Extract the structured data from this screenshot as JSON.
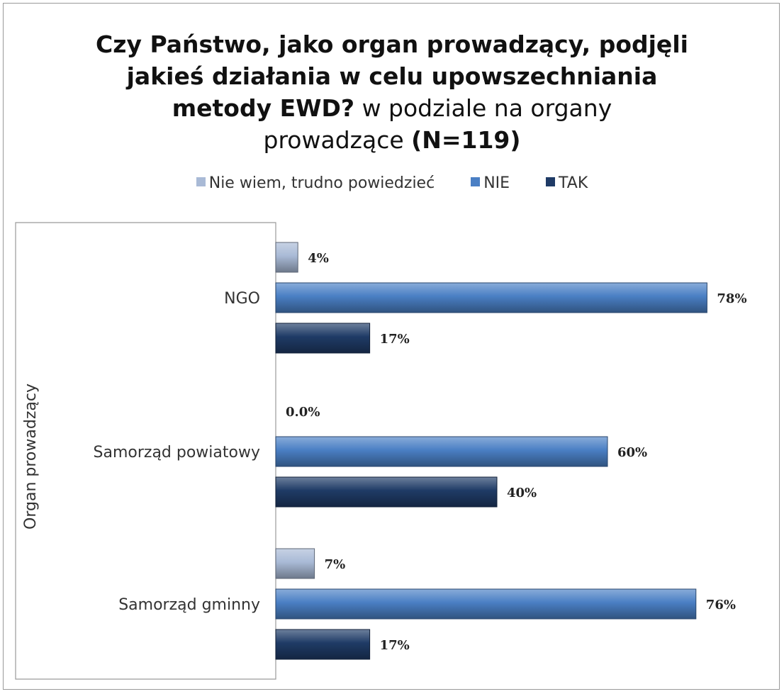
{
  "chart_data": {
    "type": "bar",
    "orientation": "horizontal",
    "title_parts": [
      {
        "text": "Czy Państwo, jako organ prowadzący, podjęli",
        "bold": true
      },
      {
        "text": "jakieś działania w celu upowszechniania",
        "bold": true
      },
      {
        "text": "metody EWD?",
        "bold": true
      },
      {
        "text": " w podziale na organy",
        "bold": false
      },
      {
        "text": "prowadzące ",
        "bold": false
      },
      {
        "text": "(N=119)",
        "bold": true
      }
    ],
    "ylabel": "Organ prowadzący",
    "xlabel": "",
    "xlim": [
      0,
      100
    ],
    "grid": false,
    "legend_position": "top",
    "categories": [
      "NGO",
      "Samorząd powiatowy",
      "Samorząd gminny"
    ],
    "series": [
      {
        "name": "Nie wiem, trudno powiedzieć",
        "color": "#a9bad6",
        "values": [
          4,
          0,
          7
        ],
        "labels": [
          "4%",
          "0.0%",
          "7%"
        ]
      },
      {
        "name": "NIE",
        "color": "#4a7fc4",
        "values": [
          78,
          60,
          76
        ],
        "labels": [
          "78%",
          "60%",
          "76%"
        ]
      },
      {
        "name": "TAK",
        "color": "#1f3b66",
        "values": [
          17,
          40,
          17
        ],
        "labels": [
          "17%",
          "40%",
          "17%"
        ]
      }
    ]
  }
}
